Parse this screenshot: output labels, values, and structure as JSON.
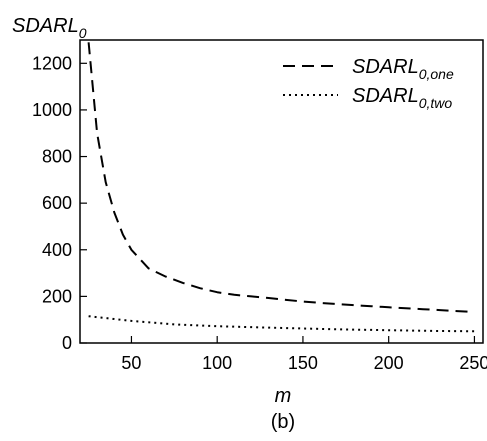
{
  "chart_data": {
    "type": "line",
    "title": "",
    "caption": "(b)",
    "xlabel": "m",
    "ylabel": "SDARL",
    "ylabel_sub": "0",
    "xlim": [
      20,
      255
    ],
    "ylim": [
      0,
      1300
    ],
    "xticks": [
      50,
      100,
      150,
      200,
      250
    ],
    "yticks": [
      0,
      200,
      400,
      600,
      800,
      1000,
      1200
    ],
    "grid": false,
    "legend_position": "top-right",
    "series": [
      {
        "name": "SDARL",
        "name_sub": "0,one",
        "style": "dashed",
        "x": [
          25,
          30,
          35,
          40,
          45,
          50,
          60,
          70,
          80,
          90,
          100,
          110,
          120,
          130,
          140,
          150,
          160,
          170,
          180,
          190,
          200,
          210,
          220,
          230,
          240,
          250
        ],
        "y": [
          1290,
          900,
          690,
          560,
          465,
          400,
          320,
          285,
          258,
          235,
          218,
          207,
          200,
          193,
          185,
          178,
          172,
          167,
          162,
          158,
          153,
          149,
          145,
          141,
          137,
          133
        ]
      },
      {
        "name": "SDARL",
        "name_sub": "0,two",
        "style": "dotted",
        "x": [
          25,
          50,
          75,
          100,
          125,
          150,
          175,
          200,
          225,
          250
        ],
        "y": [
          115,
          95,
          80,
          72,
          67,
          62,
          58,
          55,
          52,
          50
        ]
      }
    ]
  }
}
